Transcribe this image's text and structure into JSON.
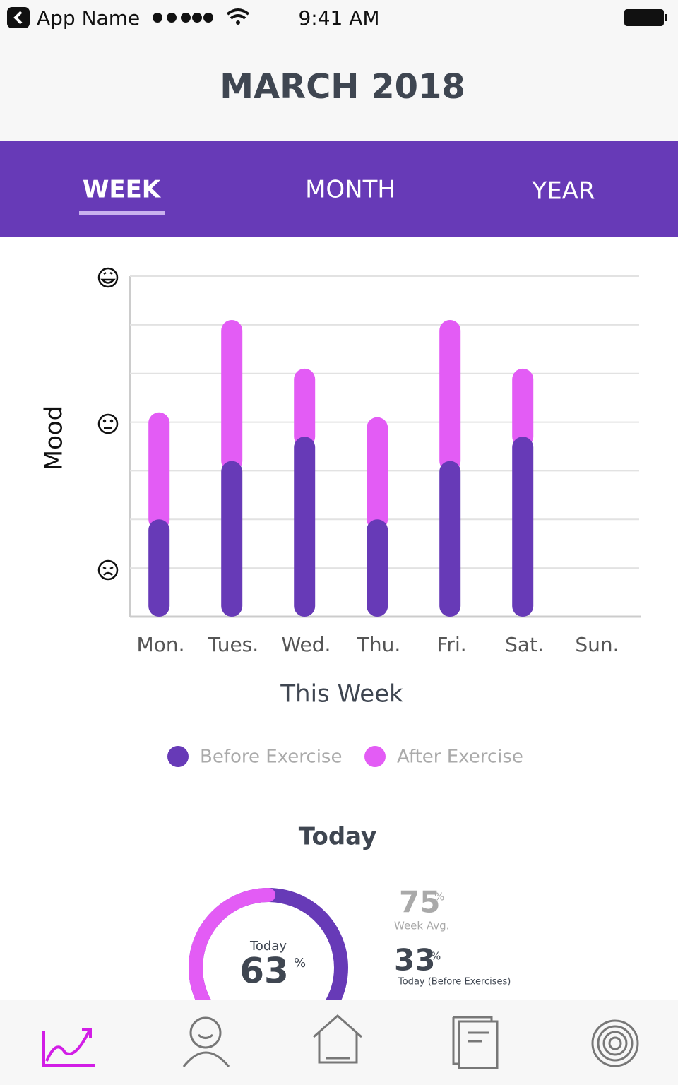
{
  "status_bar": {
    "app_name": "App Name",
    "time": "9:41 AM"
  },
  "header": {
    "title": "MARCH 2018"
  },
  "tabs": [
    "WEEK",
    "MONTH",
    "YEAR"
  ],
  "chart_data": {
    "type": "bar",
    "stacked": true,
    "y_label": "Mood",
    "x_label": "This Week",
    "categories": [
      "Mon.",
      "Tues.",
      "Wed.",
      "Thu.",
      "Fri.",
      "Sat.",
      "Sun."
    ],
    "series": [
      {
        "name": "Before Exercise",
        "color": "#673ab7",
        "values": [
          2.0,
          3.2,
          3.7,
          2.0,
          3.2,
          3.7,
          null
        ]
      },
      {
        "name": "After Exercise",
        "color": "#e35cf5",
        "values": [
          2.2,
          2.9,
          1.4,
          2.1,
          2.9,
          1.4,
          null
        ]
      }
    ],
    "ylim": [
      0,
      7
    ],
    "yticks": [
      1,
      2,
      3,
      4,
      5,
      6,
      7
    ],
    "grid": true
  },
  "today": {
    "title": "Today",
    "ring": {
      "label": "Today",
      "value": 63,
      "unit": "%"
    },
    "stats": [
      {
        "value": 75,
        "unit": "%",
        "label": "Week Avg."
      },
      {
        "value": 33,
        "unit": "%",
        "label": "Today (Before Exercises)"
      }
    ]
  }
}
